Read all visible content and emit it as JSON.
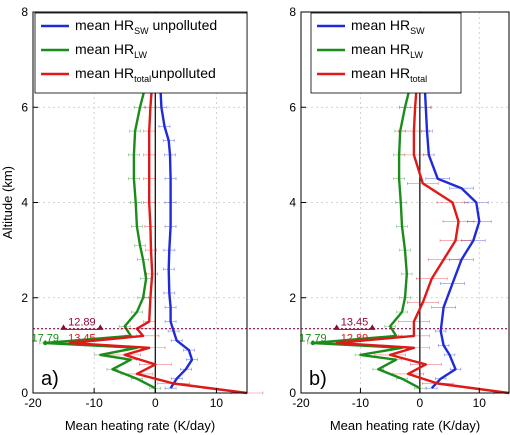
{
  "chart_data": [
    {
      "panel": "a)",
      "type": "line",
      "xlabel": "Mean heating rate (K/day)",
      "ylabel": "Altitude (km)",
      "xlim": [
        -20,
        15
      ],
      "ylim": [
        0,
        8
      ],
      "xticks": [
        -20,
        -10,
        0,
        10
      ],
      "yticks": [
        0,
        2,
        4,
        6,
        8
      ],
      "grid": true,
      "legend_placement": "top-right",
      "series": [
        {
          "legend_main": "mean HR",
          "legend_sub": "SW",
          "legend_suffix": " unpolluted",
          "color": "#1f2bd9",
          "points": [
            [
              2.5,
              0.1
            ],
            [
              3.5,
              0.3
            ],
            [
              5,
              0.5
            ],
            [
              6,
              0.7
            ],
            [
              5.5,
              0.9
            ],
            [
              3.5,
              1.1
            ],
            [
              3,
              1.3
            ],
            [
              2.5,
              1.5
            ],
            [
              2.5,
              1.8
            ],
            [
              2.3,
              2.1
            ],
            [
              2.2,
              2.6
            ],
            [
              2.3,
              3.0
            ],
            [
              2.5,
              3.5
            ],
            [
              2.5,
              4.0
            ],
            [
              2.5,
              4.5
            ],
            [
              2.4,
              5.0
            ],
            [
              2.2,
              5.3
            ],
            [
              1.5,
              5.6
            ],
            [
              1.0,
              6.0
            ],
            [
              0.8,
              6.5
            ],
            [
              0.6,
              7.0
            ]
          ]
        },
        {
          "legend_main": "mean HR",
          "legend_sub": "LW",
          "legend_suffix": "",
          "color": "#1a8c1a",
          "points": [
            [
              0,
              0.1
            ],
            [
              -3,
              0.3
            ],
            [
              -7,
              0.5
            ],
            [
              -4,
              0.7
            ],
            [
              -9,
              0.8
            ],
            [
              -3,
              0.95
            ],
            [
              -18,
              1.05
            ],
            [
              -4,
              1.2
            ],
            [
              -5,
              1.4
            ],
            [
              -3,
              1.7
            ],
            [
              -2,
              2.0
            ],
            [
              -1.5,
              2.4
            ],
            [
              -2,
              2.8
            ],
            [
              -2.5,
              3.1
            ],
            [
              -3,
              3.5
            ],
            [
              -3.2,
              4.0
            ],
            [
              -3.5,
              4.5
            ],
            [
              -3.5,
              5.0
            ],
            [
              -3.3,
              5.5
            ],
            [
              -2.5,
              6.0
            ],
            [
              -1.5,
              6.5
            ],
            [
              -0.8,
              7.0
            ]
          ]
        },
        {
          "legend_main": "mean HR",
          "legend_sub": "total",
          "legend_suffix": "unpolluted",
          "color": "#e01818",
          "points": [
            [
              15,
              0.0
            ],
            [
              3,
              0.2
            ],
            [
              -3,
              0.4
            ],
            [
              0,
              0.6
            ],
            [
              -5,
              0.8
            ],
            [
              -1,
              0.95
            ],
            [
              -14,
              1.05
            ],
            [
              -2,
              1.2
            ],
            [
              -3,
              1.35
            ],
            [
              -1,
              1.5
            ],
            [
              -0.8,
              2.0
            ],
            [
              -0.5,
              2.5
            ],
            [
              -0.7,
              3.0
            ],
            [
              -0.8,
              3.5
            ],
            [
              -1,
              4.0
            ],
            [
              -1,
              4.5
            ],
            [
              -1,
              5.0
            ],
            [
              -1,
              5.5
            ],
            [
              -0.8,
              6.0
            ],
            [
              -0.5,
              6.5
            ],
            [
              -0.3,
              7.0
            ]
          ]
        }
      ],
      "annotations": [
        {
          "text": "12.89",
          "color": "#8b0a3a",
          "x": -12,
          "y": 1.42
        },
        {
          "text": "17.79",
          "color": "#1a8c1a",
          "x": -18,
          "y": 1.08
        },
        {
          "text": "13.45",
          "color": "#e01818",
          "x": -12,
          "y": 1.08
        }
      ],
      "reference_line_altitude": 1.35
    },
    {
      "panel": "b)",
      "type": "line",
      "xlabel": "Mean heating rate (K/day)",
      "ylabel": "",
      "xlim": [
        -20,
        15
      ],
      "ylim": [
        0,
        8
      ],
      "xticks": [
        -20,
        -10,
        0,
        10
      ],
      "yticks": [
        0,
        2,
        4,
        6,
        8
      ],
      "grid": true,
      "legend_placement": "top-right",
      "series": [
        {
          "legend_main": "mean HR",
          "legend_sub": "SW",
          "legend_suffix": "",
          "color": "#1f2bd9",
          "points": [
            [
              2,
              0.1
            ],
            [
              3.5,
              0.3
            ],
            [
              6,
              0.5
            ],
            [
              5,
              0.8
            ],
            [
              4,
              1.0
            ],
            [
              3.5,
              1.3
            ],
            [
              4,
              1.8
            ],
            [
              5.5,
              2.3
            ],
            [
              7,
              2.8
            ],
            [
              9,
              3.2
            ],
            [
              10,
              3.6
            ],
            [
              9.5,
              4.0
            ],
            [
              7,
              4.3
            ],
            [
              3,
              4.5
            ],
            [
              1.5,
              5.0
            ],
            [
              1.2,
              5.5
            ],
            [
              1.0,
              6.0
            ],
            [
              0.8,
              6.5
            ],
            [
              0.6,
              7.0
            ]
          ]
        },
        {
          "legend_main": "mean HR",
          "legend_sub": "LW",
          "legend_suffix": "",
          "color": "#1a8c1a",
          "points": [
            [
              0,
              0.1
            ],
            [
              -3,
              0.3
            ],
            [
              -7,
              0.5
            ],
            [
              -4,
              0.7
            ],
            [
              -10,
              0.8
            ],
            [
              -3,
              0.95
            ],
            [
              -18,
              1.05
            ],
            [
              -4,
              1.2
            ],
            [
              -5,
              1.4
            ],
            [
              -3,
              1.7
            ],
            [
              -2.5,
              2.0
            ],
            [
              -2.2,
              2.5
            ],
            [
              -2.5,
              3.0
            ],
            [
              -3,
              3.5
            ],
            [
              -3.2,
              4.0
            ],
            [
              -3.5,
              4.5
            ],
            [
              -3.5,
              5.0
            ],
            [
              -3.3,
              5.5
            ],
            [
              -2.5,
              6.0
            ],
            [
              -1.5,
              6.5
            ],
            [
              -0.8,
              7.0
            ]
          ]
        },
        {
          "legend_main": "mean HR",
          "legend_sub": "total",
          "legend_suffix": "",
          "color": "#e01818",
          "points": [
            [
              15,
              0.0
            ],
            [
              3,
              0.2
            ],
            [
              -2,
              0.4
            ],
            [
              1,
              0.6
            ],
            [
              -5,
              0.8
            ],
            [
              -1,
              0.95
            ],
            [
              -14,
              1.05
            ],
            [
              -1,
              1.2
            ],
            [
              -1,
              1.5
            ],
            [
              0.5,
              1.9
            ],
            [
              2,
              2.4
            ],
            [
              4,
              2.8
            ],
            [
              6,
              3.2
            ],
            [
              6.5,
              3.6
            ],
            [
              5.5,
              4.0
            ],
            [
              0.5,
              4.4
            ],
            [
              -1,
              5.0
            ],
            [
              -1,
              5.5
            ],
            [
              -0.8,
              6.0
            ],
            [
              -0.5,
              6.5
            ],
            [
              -0.3,
              7.0
            ]
          ]
        }
      ],
      "annotations": [
        {
          "text": "13.45",
          "color": "#8b0a3a",
          "x": -11,
          "y": 1.42
        },
        {
          "text": "17.79",
          "color": "#1a8c1a",
          "x": -18,
          "y": 1.08
        },
        {
          "text": "12.89",
          "color": "#e01818",
          "x": -11,
          "y": 1.08
        }
      ],
      "reference_line_altitude": 1.35
    }
  ]
}
